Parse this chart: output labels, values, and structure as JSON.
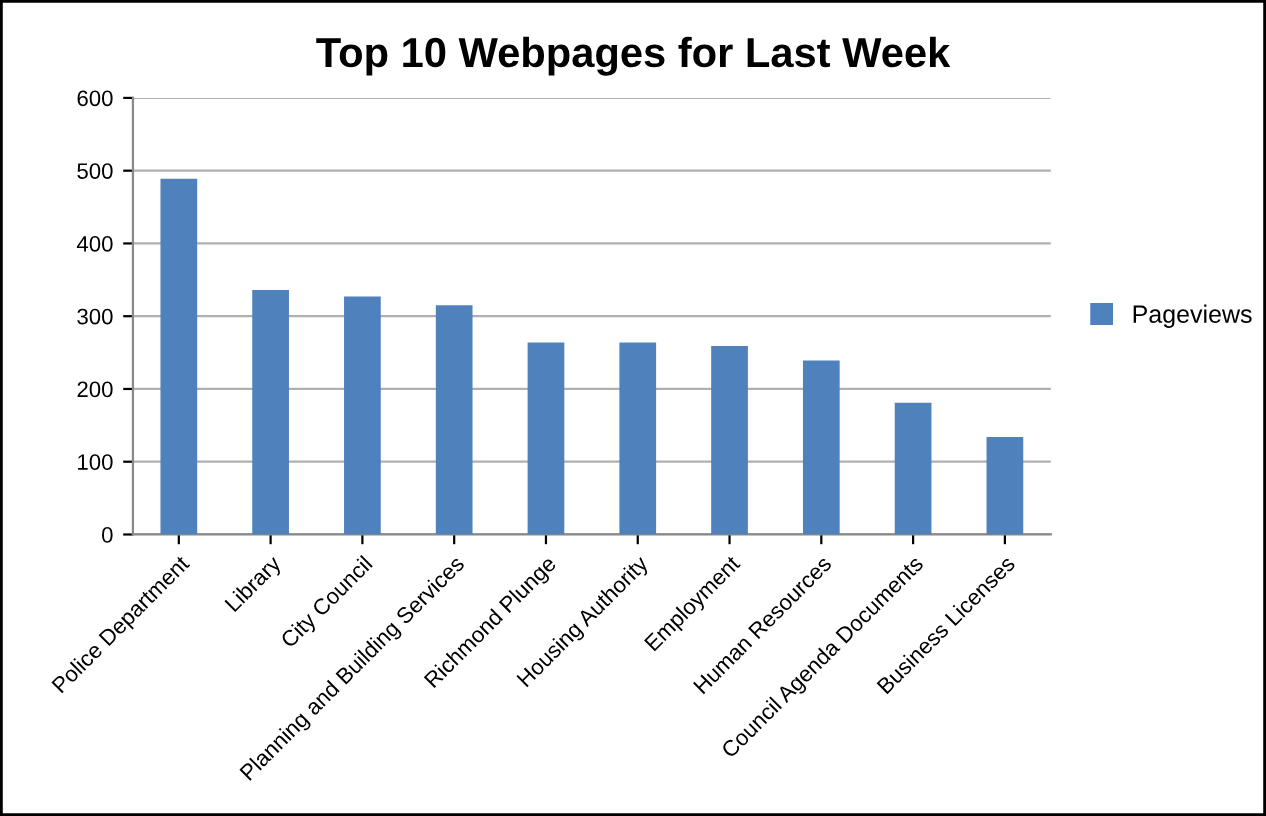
{
  "chart_data": {
    "type": "bar",
    "title": "Top 10 Webpages for Last Week",
    "categories": [
      "Police Department",
      "Library",
      "City Council",
      "Planning and Building Services",
      "Richmond Plunge",
      "Housing Authority",
      "Employment",
      "Human Resources",
      "Council Agenda Documents",
      "Business Licenses"
    ],
    "series": [
      {
        "name": "Pageviews",
        "color": "#4f81bd",
        "values": [
          489,
          336,
          327,
          315,
          264,
          264,
          259,
          239,
          181,
          134
        ]
      }
    ],
    "ylim": [
      0,
      600
    ],
    "yticks": [
      0,
      100,
      200,
      300,
      400,
      500,
      600
    ],
    "grid": "y",
    "legend": "right"
  }
}
